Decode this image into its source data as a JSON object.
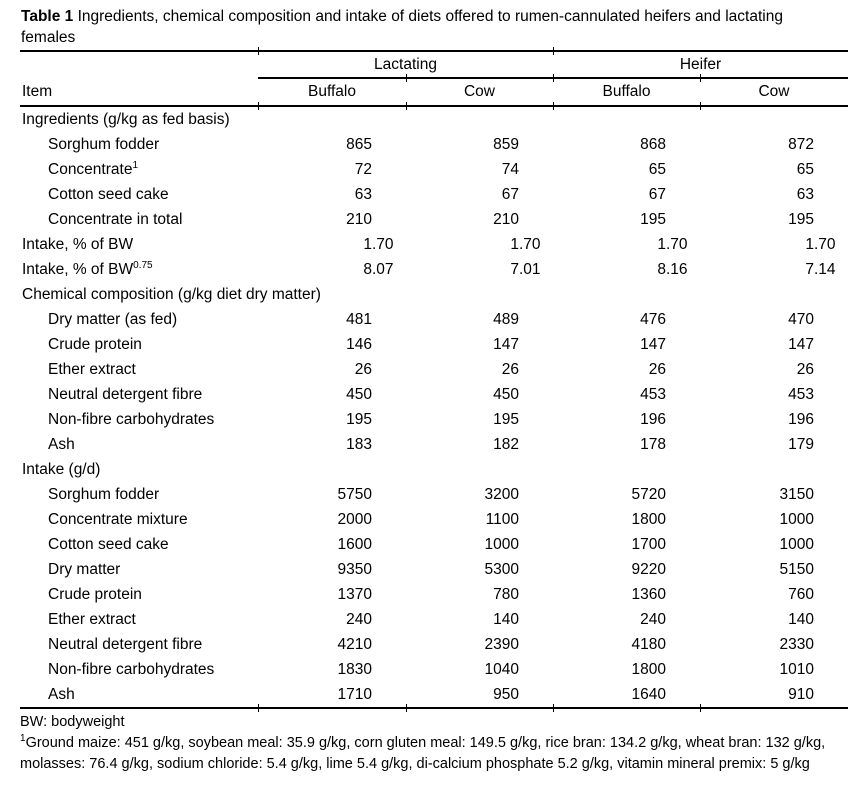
{
  "title": {
    "bold": "Table 1",
    "text": " Ingredients, chemical composition and intake of diets offered to rumen-cannulated heifers and lactating females"
  },
  "colors": {
    "text": "#000000",
    "background": "#ffffff",
    "rule": "#000000"
  },
  "table": {
    "item_header": "Item",
    "group_headers": [
      "Lactating",
      "Heifer"
    ],
    "column_headers": [
      "Buffalo",
      "Cow",
      "Buffalo",
      "Cow"
    ],
    "rows": [
      {
        "label": "Ingredients (g/kg as fed basis)",
        "sup": "",
        "indent": false,
        "values": []
      },
      {
        "label": "Sorghum fodder",
        "sup": "",
        "indent": true,
        "values": [
          "865",
          "859",
          "868",
          "872"
        ]
      },
      {
        "label": "Concentrate",
        "sup": "1",
        "indent": true,
        "values": [
          "72",
          "74",
          "65",
          "65"
        ]
      },
      {
        "label": "Cotton seed cake",
        "sup": "",
        "indent": true,
        "values": [
          "63",
          "67",
          "67",
          "63"
        ]
      },
      {
        "label": "Concentrate in total",
        "sup": "",
        "indent": true,
        "values": [
          "210",
          "210",
          "195",
          "195"
        ]
      },
      {
        "label": "Intake, % of BW",
        "sup": "",
        "indent": false,
        "values": [
          "1.70",
          "1.70",
          "1.70",
          "1.70"
        ]
      },
      {
        "label": "Intake, % of BW",
        "sup": "0.75",
        "indent": false,
        "values": [
          "8.07",
          "7.01",
          "8.16",
          "7.14"
        ]
      },
      {
        "label": "Chemical composition (g/kg diet dry matter)",
        "sup": "",
        "indent": false,
        "values": []
      },
      {
        "label": "Dry matter (as fed)",
        "sup": "",
        "indent": true,
        "values": [
          "481",
          "489",
          "476",
          "470"
        ]
      },
      {
        "label": "Crude protein",
        "sup": "",
        "indent": true,
        "values": [
          "146",
          "147",
          "147",
          "147"
        ]
      },
      {
        "label": "Ether extract",
        "sup": "",
        "indent": true,
        "values": [
          "26",
          "26",
          "26",
          "26"
        ]
      },
      {
        "label": "Neutral detergent fibre",
        "sup": "",
        "indent": true,
        "values": [
          "450",
          "450",
          "453",
          "453"
        ]
      },
      {
        "label": "Non-fibre carbohydrates",
        "sup": "",
        "indent": true,
        "values": [
          "195",
          "195",
          "196",
          "196"
        ]
      },
      {
        "label": "Ash",
        "sup": "",
        "indent": true,
        "values": [
          "183",
          "182",
          "178",
          "179"
        ]
      },
      {
        "label": "Intake (g/d)",
        "sup": "",
        "indent": false,
        "values": []
      },
      {
        "label": "Sorghum fodder",
        "sup": "",
        "indent": true,
        "values": [
          "5750",
          "3200",
          "5720",
          "3150"
        ]
      },
      {
        "label": "Concentrate mixture",
        "sup": "",
        "indent": true,
        "values": [
          "2000",
          "1100",
          "1800",
          "1000"
        ]
      },
      {
        "label": "Cotton seed cake",
        "sup": "",
        "indent": true,
        "values": [
          "1600",
          "1000",
          "1700",
          "1000"
        ]
      },
      {
        "label": "Dry matter",
        "sup": "",
        "indent": true,
        "values": [
          "9350",
          "5300",
          "9220",
          "5150"
        ]
      },
      {
        "label": "Crude protein",
        "sup": "",
        "indent": true,
        "values": [
          "1370",
          "780",
          "1360",
          "760"
        ]
      },
      {
        "label": "Ether extract",
        "sup": "",
        "indent": true,
        "values": [
          "240",
          "140",
          "240",
          "140"
        ]
      },
      {
        "label": "Neutral detergent fibre",
        "sup": "",
        "indent": true,
        "values": [
          "4210",
          "2390",
          "4180",
          "2330"
        ]
      },
      {
        "label": "Non-fibre carbohydrates",
        "sup": "",
        "indent": true,
        "values": [
          "1830",
          "1040",
          "1800",
          "1010"
        ]
      },
      {
        "label": "Ash",
        "sup": "",
        "indent": true,
        "values": [
          "1710",
          "950",
          "1640",
          "910"
        ]
      }
    ]
  },
  "footnotes": [
    {
      "sup": "",
      "text": "BW: bodyweight"
    },
    {
      "sup": "1",
      "text": "Ground maize: 451 g/kg, soybean meal: 35.9 g/kg, corn gluten meal: 149.5 g/kg, rice bran: 134.2 g/kg, wheat bran: 132 g/kg, molasses: 76.4 g/kg, sodium chloride: 5.4 g/kg, lime 5.4 g/kg, di-calcium phosphate 5.2 g/kg, vitamin mineral premix: 5 g/kg"
    }
  ]
}
